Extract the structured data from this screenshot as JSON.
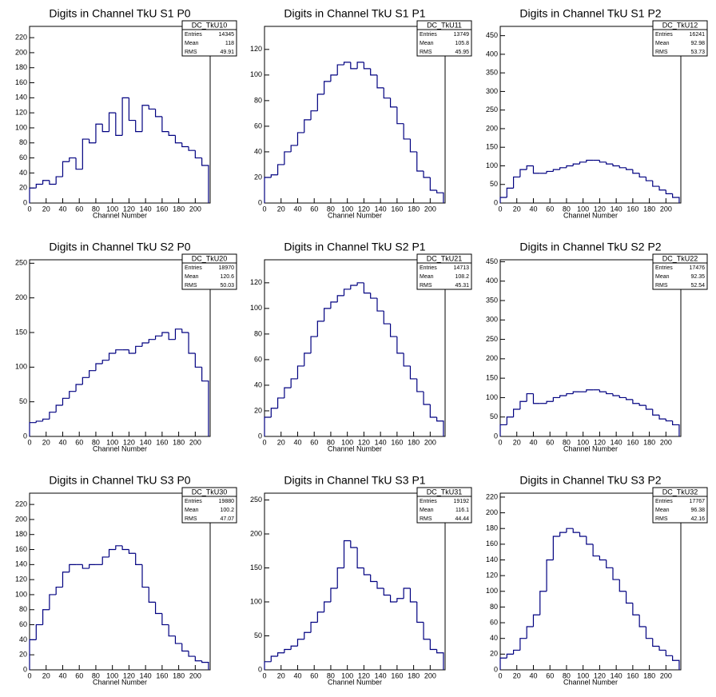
{
  "chart_data": [
    {
      "type": "histogram",
      "title": "Digits in Channel TkU S1 P0",
      "x_label": "Channel Number",
      "color": "#000080",
      "bins": [
        0,
        8,
        16,
        24,
        32,
        40,
        48,
        56,
        64,
        72,
        80,
        88,
        96,
        104,
        112,
        120,
        128,
        136,
        144,
        152,
        160,
        168,
        176,
        184,
        192,
        200,
        208,
        216
      ],
      "values": [
        20,
        25,
        30,
        25,
        35,
        55,
        60,
        45,
        85,
        80,
        105,
        95,
        120,
        90,
        140,
        110,
        95,
        130,
        125,
        115,
        95,
        90,
        80,
        75,
        70,
        60,
        50
      ],
      "xlim": [
        0,
        218
      ],
      "xticks": [
        0,
        20,
        40,
        60,
        80,
        100,
        120,
        140,
        160,
        180,
        200
      ],
      "ylim": [
        0,
        235
      ],
      "yticks": [
        0,
        20,
        40,
        60,
        80,
        100,
        120,
        140,
        160,
        180,
        200,
        220
      ],
      "stats": {
        "name": "DC_TkU10",
        "rows": [
          [
            "Entries",
            14345
          ],
          [
            "Mean",
            118
          ],
          [
            "RMS",
            49.91
          ]
        ]
      }
    },
    {
      "type": "histogram",
      "title": "Digits in Channel TkU S1 P1",
      "x_label": "Channel Number",
      "color": "#000080",
      "bins": [
        0,
        8,
        16,
        24,
        32,
        40,
        48,
        56,
        64,
        72,
        80,
        88,
        96,
        104,
        112,
        120,
        128,
        136,
        144,
        152,
        160,
        168,
        176,
        184,
        192,
        200,
        208,
        216
      ],
      "values": [
        20,
        22,
        30,
        40,
        45,
        55,
        65,
        72,
        85,
        95,
        100,
        108,
        110,
        105,
        110,
        105,
        100,
        90,
        82,
        75,
        62,
        50,
        40,
        25,
        20,
        10,
        8
      ],
      "xlim": [
        0,
        218
      ],
      "xticks": [
        0,
        20,
        40,
        60,
        80,
        100,
        120,
        140,
        160,
        180,
        200
      ],
      "ylim": [
        0,
        138
      ],
      "yticks": [
        0,
        20,
        40,
        60,
        80,
        100,
        120
      ],
      "stats": {
        "name": "DC_TkU11",
        "rows": [
          [
            "Entries",
            13749
          ],
          [
            "Mean",
            105.8
          ],
          [
            "RMS",
            45.95
          ]
        ]
      }
    },
    {
      "type": "histogram",
      "title": "Digits in Channel TkU S1 P2",
      "x_label": "Channel Number",
      "color": "#000080",
      "bins": [
        0,
        8,
        16,
        24,
        32,
        40,
        48,
        56,
        64,
        72,
        80,
        88,
        96,
        104,
        112,
        120,
        128,
        136,
        144,
        152,
        160,
        168,
        176,
        184,
        192,
        200,
        208,
        216
      ],
      "values": [
        15,
        40,
        70,
        90,
        100,
        80,
        80,
        85,
        90,
        95,
        100,
        105,
        110,
        115,
        115,
        110,
        105,
        100,
        95,
        90,
        80,
        70,
        60,
        45,
        35,
        25,
        15
      ],
      "xlim": [
        0,
        218
      ],
      "xticks": [
        0,
        20,
        40,
        60,
        80,
        100,
        120,
        140,
        160,
        180,
        200
      ],
      "ylim": [
        0,
        475
      ],
      "yticks": [
        0,
        50,
        100,
        150,
        200,
        250,
        300,
        350,
        400,
        450
      ],
      "stats": {
        "name": "DC_TkU12",
        "rows": [
          [
            "Entries",
            16241
          ],
          [
            "Mean",
            92.98
          ],
          [
            "RMS",
            53.73
          ]
        ]
      }
    },
    {
      "type": "histogram",
      "title": "Digits in Channel TkU S2 P0",
      "x_label": "Channel Number",
      "color": "#000080",
      "bins": [
        0,
        8,
        16,
        24,
        32,
        40,
        48,
        56,
        64,
        72,
        80,
        88,
        96,
        104,
        112,
        120,
        128,
        136,
        144,
        152,
        160,
        168,
        176,
        184,
        192,
        200,
        208,
        216
      ],
      "values": [
        20,
        22,
        25,
        35,
        45,
        55,
        65,
        75,
        85,
        95,
        105,
        110,
        120,
        125,
        125,
        120,
        130,
        135,
        140,
        145,
        150,
        140,
        155,
        150,
        120,
        100,
        80
      ],
      "xlim": [
        0,
        218
      ],
      "xticks": [
        0,
        20,
        40,
        60,
        80,
        100,
        120,
        140,
        160,
        180,
        200
      ],
      "ylim": [
        0,
        255
      ],
      "yticks": [
        0,
        50,
        100,
        150,
        200,
        250
      ],
      "stats": {
        "name": "DC_TkU20",
        "rows": [
          [
            "Entries",
            18970
          ],
          [
            "Mean",
            120.6
          ],
          [
            "RMS",
            50.03
          ]
        ]
      }
    },
    {
      "type": "histogram",
      "title": "Digits in Channel TkU S2 P1",
      "x_label": "Channel Number",
      "color": "#000080",
      "bins": [
        0,
        8,
        16,
        24,
        32,
        40,
        48,
        56,
        64,
        72,
        80,
        88,
        96,
        104,
        112,
        120,
        128,
        136,
        144,
        152,
        160,
        168,
        176,
        184,
        192,
        200,
        208,
        216
      ],
      "values": [
        15,
        22,
        30,
        38,
        45,
        55,
        65,
        78,
        90,
        100,
        105,
        110,
        115,
        118,
        120,
        112,
        108,
        98,
        88,
        78,
        65,
        55,
        45,
        35,
        25,
        15,
        12
      ],
      "xlim": [
        0,
        218
      ],
      "xticks": [
        0,
        20,
        40,
        60,
        80,
        100,
        120,
        140,
        160,
        180,
        200
      ],
      "ylim": [
        0,
        138
      ],
      "yticks": [
        0,
        20,
        40,
        60,
        80,
        100,
        120
      ],
      "stats": {
        "name": "DC_TkU21",
        "rows": [
          [
            "Entries",
            14713
          ],
          [
            "Mean",
            108.2
          ],
          [
            "RMS",
            45.31
          ]
        ]
      }
    },
    {
      "type": "histogram",
      "title": "Digits in Channel TkU S2 P2",
      "x_label": "Channel Number",
      "color": "#000080",
      "bins": [
        0,
        8,
        16,
        24,
        32,
        40,
        48,
        56,
        64,
        72,
        80,
        88,
        96,
        104,
        112,
        120,
        128,
        136,
        144,
        152,
        160,
        168,
        176,
        184,
        192,
        200,
        208,
        216
      ],
      "values": [
        30,
        50,
        70,
        90,
        110,
        85,
        85,
        90,
        100,
        105,
        110,
        115,
        115,
        120,
        120,
        115,
        110,
        105,
        100,
        95,
        85,
        80,
        70,
        55,
        45,
        40,
        30
      ],
      "xlim": [
        0,
        218
      ],
      "xticks": [
        0,
        20,
        40,
        60,
        80,
        100,
        120,
        140,
        160,
        180,
        200
      ],
      "ylim": [
        0,
        455
      ],
      "yticks": [
        0,
        50,
        100,
        150,
        200,
        250,
        300,
        350,
        400,
        450
      ],
      "stats": {
        "name": "DC_TkU22",
        "rows": [
          [
            "Entries",
            17476
          ],
          [
            "Mean",
            92.35
          ],
          [
            "RMS",
            52.54
          ]
        ]
      }
    },
    {
      "type": "histogram",
      "title": "Digits in Channel TkU S3 P0",
      "x_label": "Channel Number",
      "color": "#000080",
      "bins": [
        0,
        8,
        16,
        24,
        32,
        40,
        48,
        56,
        64,
        72,
        80,
        88,
        96,
        104,
        112,
        120,
        128,
        136,
        144,
        152,
        160,
        168,
        176,
        184,
        192,
        200,
        208,
        216
      ],
      "values": [
        40,
        60,
        80,
        100,
        110,
        130,
        140,
        140,
        135,
        140,
        140,
        150,
        160,
        165,
        160,
        155,
        140,
        110,
        90,
        75,
        60,
        45,
        35,
        25,
        18,
        12,
        10
      ],
      "xlim": [
        0,
        218
      ],
      "xticks": [
        0,
        20,
        40,
        60,
        80,
        100,
        120,
        140,
        160,
        180,
        200
      ],
      "ylim": [
        0,
        235
      ],
      "yticks": [
        0,
        20,
        40,
        60,
        80,
        100,
        120,
        140,
        160,
        180,
        200,
        220
      ],
      "stats": {
        "name": "DC_TkU30",
        "rows": [
          [
            "Entries",
            19880
          ],
          [
            "Mean",
            100.2
          ],
          [
            "RMS",
            47.07
          ]
        ]
      }
    },
    {
      "type": "histogram",
      "title": "Digits in Channel TkU S3 P1",
      "x_label": "Channel Number",
      "color": "#000080",
      "bins": [
        0,
        8,
        16,
        24,
        32,
        40,
        48,
        56,
        64,
        72,
        80,
        88,
        96,
        104,
        112,
        120,
        128,
        136,
        144,
        152,
        160,
        168,
        176,
        184,
        192,
        200,
        208,
        216
      ],
      "values": [
        12,
        20,
        25,
        30,
        35,
        45,
        55,
        70,
        85,
        100,
        120,
        150,
        190,
        180,
        150,
        140,
        130,
        120,
        110,
        100,
        105,
        120,
        100,
        70,
        45,
        30,
        25
      ],
      "xlim": [
        0,
        218
      ],
      "xticks": [
        0,
        20,
        40,
        60,
        80,
        100,
        120,
        140,
        160,
        180,
        200
      ],
      "ylim": [
        0,
        260
      ],
      "yticks": [
        0,
        50,
        100,
        150,
        200,
        250
      ],
      "stats": {
        "name": "DC_TkU31",
        "rows": [
          [
            "Entries",
            19192
          ],
          [
            "Mean",
            116.1
          ],
          [
            "RMS",
            44.44
          ]
        ]
      }
    },
    {
      "type": "histogram",
      "title": "Digits in Channel TkU S3 P2",
      "x_label": "Channel Number",
      "color": "#000080",
      "bins": [
        0,
        8,
        16,
        24,
        32,
        40,
        48,
        56,
        64,
        72,
        80,
        88,
        96,
        104,
        112,
        120,
        128,
        136,
        144,
        152,
        160,
        168,
        176,
        184,
        192,
        200,
        208,
        216
      ],
      "values": [
        15,
        20,
        25,
        40,
        55,
        70,
        100,
        140,
        170,
        175,
        180,
        175,
        170,
        160,
        145,
        140,
        130,
        115,
        100,
        85,
        70,
        55,
        40,
        30,
        25,
        18,
        12
      ],
      "xlim": [
        0,
        218
      ],
      "xticks": [
        0,
        20,
        40,
        60,
        80,
        100,
        120,
        140,
        160,
        180,
        200
      ],
      "ylim": [
        0,
        225
      ],
      "yticks": [
        0,
        20,
        40,
        60,
        80,
        100,
        120,
        140,
        160,
        180,
        200,
        220
      ],
      "stats": {
        "name": "DC_TkU32",
        "rows": [
          [
            "Entries",
            17767
          ],
          [
            "Mean",
            96.38
          ],
          [
            "RMS",
            42.16
          ]
        ]
      }
    }
  ]
}
